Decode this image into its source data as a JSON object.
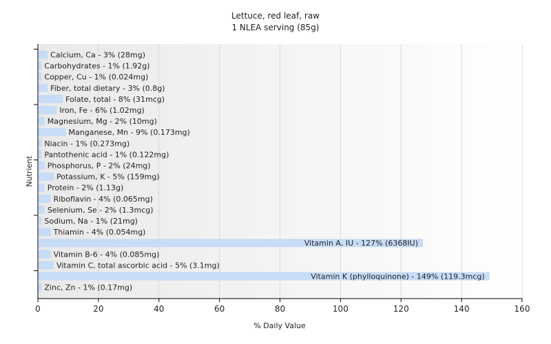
{
  "chart_data": {
    "type": "bar",
    "orientation": "horizontal",
    "title": "Lettuce, red leaf, raw",
    "subtitle": "1 NLEA serving (85g)",
    "xlabel": "% Daily Value",
    "ylabel": "Nutrient",
    "xlim": [
      0,
      160
    ],
    "xticks": [
      0,
      20,
      40,
      60,
      80,
      100,
      120,
      140,
      160
    ],
    "grid": true,
    "bar_color": "#c6dcf7",
    "categories": [
      "Calcium, Ca",
      "Carbohydrates",
      "Copper, Cu",
      "Fiber, total dietary",
      "Folate, total",
      "Iron, Fe",
      "Magnesium, Mg",
      "Manganese, Mn",
      "Niacin",
      "Pantothenic acid",
      "Phosphorus, P",
      "Potassium, K",
      "Protein",
      "Riboflavin",
      "Selenium, Se",
      "Sodium, Na",
      "Thiamin",
      "Vitamin A, IU",
      "Vitamin B-6",
      "Vitamin C, total ascorbic acid",
      "Vitamin K (phylloquinone)",
      "Zinc, Zn"
    ],
    "values": [
      3,
      1,
      1,
      3,
      8,
      6,
      2,
      9,
      1,
      1,
      2,
      5,
      2,
      4,
      2,
      1,
      4,
      127,
      4,
      5,
      149,
      1
    ],
    "labels": [
      "Calcium, Ca - 3% (28mg)",
      "Carbohydrates - 1% (1.92g)",
      "Copper, Cu - 1% (0.024mg)",
      "Fiber, total dietary - 3% (0.8g)",
      "Folate, total - 8% (31mcg)",
      "Iron, Fe - 6% (1.02mg)",
      "Magnesium, Mg - 2% (10mg)",
      "Manganese, Mn - 9% (0.173mg)",
      "Niacin - 1% (0.273mg)",
      "Pantothenic acid - 1% (0.122mg)",
      "Phosphorus, P - 2% (24mg)",
      "Potassium, K - 5% (159mg)",
      "Protein - 2% (1.13g)",
      "Riboflavin - 4% (0.065mg)",
      "Selenium, Se - 2% (1.3mcg)",
      "Sodium, Na - 1% (21mg)",
      "Thiamin - 4% (0.054mg)",
      "Vitamin A, IU - 127% (6368IU)",
      "Vitamin B-6 - 4% (0.085mg)",
      "Vitamin C, total ascorbic acid - 5% (3.1mg)",
      "Vitamin K (phylloquinone) - 149% (119.3mcg)",
      "Zinc, Zn - 1% (0.17mg)"
    ]
  }
}
